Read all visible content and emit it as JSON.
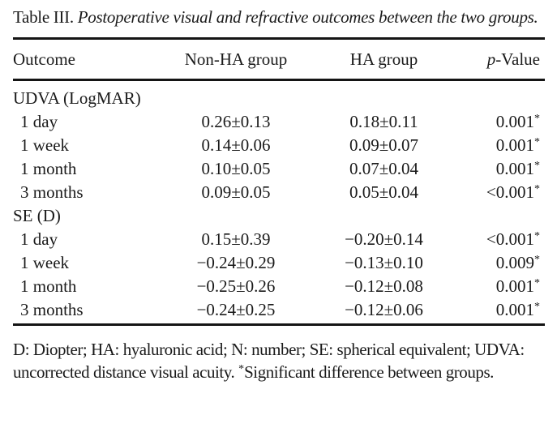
{
  "title": {
    "label": "Table III.",
    "text": "Postoperative visual and refractive outcomes between the two groups."
  },
  "table": {
    "headers": [
      {
        "text": "Outcome"
      },
      {
        "text": "Non-HA group"
      },
      {
        "text": "HA group"
      },
      {
        "italic": "p",
        "text": "-Value"
      }
    ],
    "sections": [
      {
        "label": "UDVA (LogMAR)",
        "rows": [
          {
            "outcome": "1 day",
            "non_ha": "0.26±0.13",
            "ha": "0.18±0.11",
            "p": "0.001",
            "sig": "*"
          },
          {
            "outcome": "1 week",
            "non_ha": "0.14±0.06",
            "ha": "0.09±0.07",
            "p": "0.001",
            "sig": "*"
          },
          {
            "outcome": "1 month",
            "non_ha": "0.10±0.05",
            "ha": "0.07±0.04",
            "p": "0.001",
            "sig": "*"
          },
          {
            "outcome": "3 months",
            "non_ha": "0.09±0.05",
            "ha": "0.05±0.04",
            "p": "<0.001",
            "sig": "*"
          }
        ]
      },
      {
        "label": "SE (D)",
        "rows": [
          {
            "outcome": "1 day",
            "non_ha": "0.15±0.39",
            "ha": "−0.20±0.14",
            "p": "<0.001",
            "sig": "*"
          },
          {
            "outcome": "1 week",
            "non_ha": "−0.24±0.29",
            "ha": "−0.13±0.10",
            "p": "0.009",
            "sig": "*"
          },
          {
            "outcome": "1 month",
            "non_ha": "−0.25±0.26",
            "ha": "−0.12±0.08",
            "p": "0.001",
            "sig": "*"
          },
          {
            "outcome": "3 months",
            "non_ha": "−0.24±0.25",
            "ha": "−0.12±0.06",
            "p": "0.001",
            "sig": "*"
          }
        ]
      }
    ]
  },
  "footnote": {
    "abbreviations": "D: Diopter; HA: hyaluronic acid; N: number; SE: spherical equivalent; UDVA: uncorrected distance visual acuity. ",
    "sig_marker": "*",
    "sig_text": "Significant difference between groups."
  },
  "colors": {
    "background": "#ffffff",
    "text": "#1a1a1a",
    "rule": "#141414"
  }
}
